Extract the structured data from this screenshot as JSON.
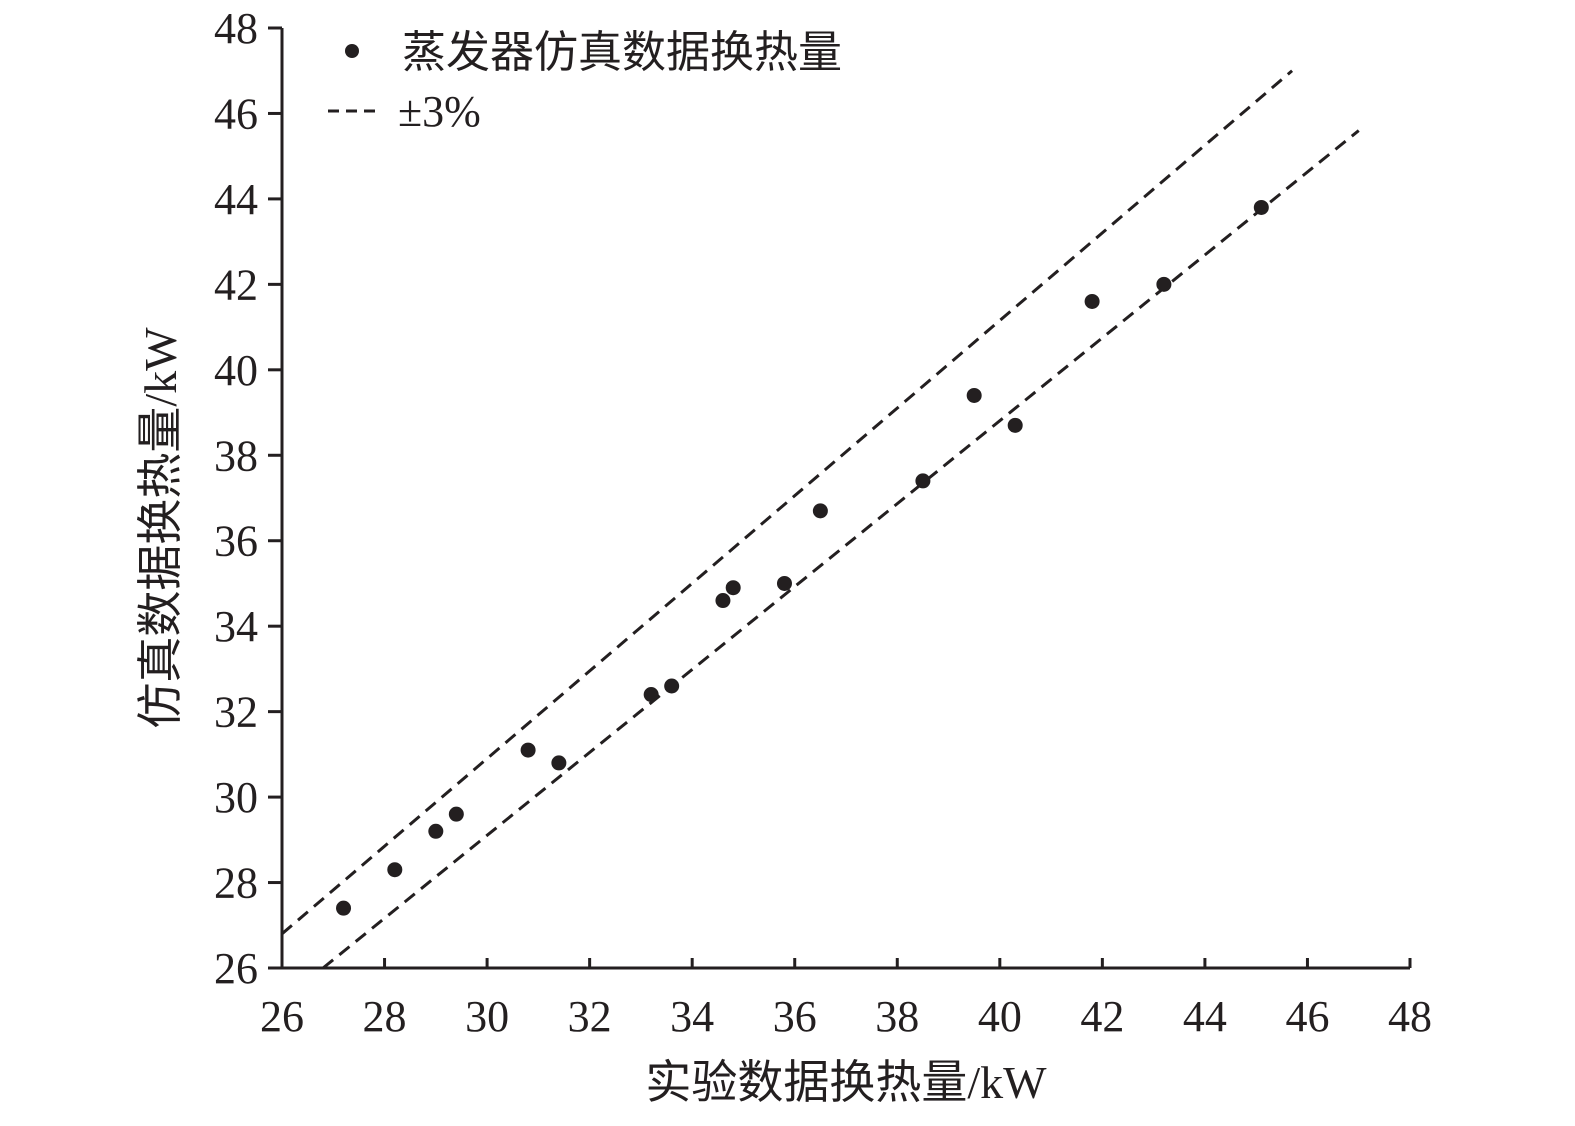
{
  "chart_data": {
    "type": "scatter",
    "xlabel": "实验数据换热量/kW",
    "ylabel": "仿真数据换热量/kW",
    "xlim": [
      26,
      48
    ],
    "ylim": [
      26,
      48
    ],
    "xticks": [
      26,
      28,
      30,
      32,
      34,
      36,
      38,
      40,
      42,
      44,
      46,
      48
    ],
    "yticks": [
      26,
      28,
      30,
      32,
      34,
      36,
      38,
      40,
      42,
      44,
      46,
      48
    ],
    "grid": false,
    "legend_position": "top-left",
    "series": [
      {
        "name": "蒸发器仿真数据换热量",
        "marker": "filled-circle",
        "color": "#231f20",
        "points": [
          {
            "x": 27.2,
            "y": 27.4
          },
          {
            "x": 28.2,
            "y": 28.3
          },
          {
            "x": 29.0,
            "y": 29.2
          },
          {
            "x": 29.4,
            "y": 29.6
          },
          {
            "x": 30.8,
            "y": 31.1
          },
          {
            "x": 31.4,
            "y": 30.8
          },
          {
            "x": 33.2,
            "y": 32.4
          },
          {
            "x": 33.6,
            "y": 32.6
          },
          {
            "x": 34.6,
            "y": 34.6
          },
          {
            "x": 34.8,
            "y": 34.9
          },
          {
            "x": 35.8,
            "y": 35.0
          },
          {
            "x": 36.5,
            "y": 36.7
          },
          {
            "x": 38.5,
            "y": 37.4
          },
          {
            "x": 39.5,
            "y": 39.4
          },
          {
            "x": 40.3,
            "y": 38.7
          },
          {
            "x": 41.8,
            "y": 41.6
          },
          {
            "x": 43.2,
            "y": 42.0
          },
          {
            "x": 45.1,
            "y": 43.8
          }
        ]
      }
    ],
    "reference_lines": {
      "name": "±3%",
      "style": "dashed",
      "color": "#231f20",
      "lines": [
        {
          "points": [
            {
              "x": 26.0,
              "y": 26.8
            },
            {
              "x": 45.7,
              "y": 47.0
            }
          ]
        },
        {
          "points": [
            {
              "x": 26.8,
              "y": 26.0
            },
            {
              "x": 47.0,
              "y": 45.6
            }
          ]
        }
      ]
    }
  }
}
